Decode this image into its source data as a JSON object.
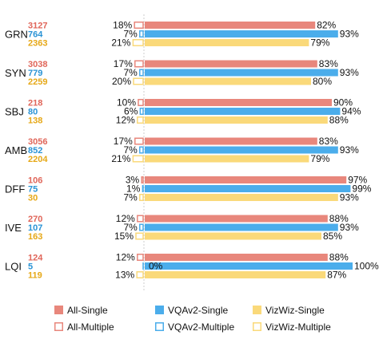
{
  "chart_data": {
    "type": "bar",
    "categories": [
      "GRN",
      "SYN",
      "SBJ",
      "AMB",
      "DFF",
      "IVE",
      "LQI"
    ],
    "counts": {
      "All": [
        3127,
        3038,
        218,
        3056,
        106,
        270,
        124
      ],
      "VQAv2": [
        764,
        779,
        80,
        852,
        75,
        107,
        5
      ],
      "VizWiz": [
        2363,
        2259,
        138,
        2204,
        30,
        163,
        119
      ]
    },
    "single": {
      "All": [
        82,
        83,
        90,
        83,
        97,
        88,
        88
      ],
      "VQAv2": [
        93,
        93,
        94,
        93,
        99,
        93,
        100
      ],
      "VizWiz": [
        79,
        80,
        88,
        79,
        93,
        85,
        87
      ]
    },
    "multiple": {
      "All": [
        18,
        17,
        10,
        17,
        3,
        12,
        12
      ],
      "VQAv2": [
        7,
        7,
        6,
        7,
        1,
        7,
        0
      ],
      "VizWiz": [
        21,
        20,
        12,
        21,
        7,
        15,
        13
      ]
    },
    "value_suffix": "%",
    "xlim": [
      0,
      100
    ],
    "legend": {
      "position": "bottom",
      "items": [
        {
          "key": "All",
          "style": "single",
          "label": "All-Single"
        },
        {
          "key": "VQAv2",
          "style": "single",
          "label": "VQAv2-Single"
        },
        {
          "key": "VizWiz",
          "style": "single",
          "label": "VizWiz-Single"
        },
        {
          "key": "All",
          "style": "multiple",
          "label": "All-Multiple"
        },
        {
          "key": "VQAv2",
          "style": "multiple",
          "label": "VQAv2-Multiple"
        },
        {
          "key": "VizWiz",
          "style": "multiple",
          "label": "VizWiz-Multiple"
        }
      ]
    },
    "colors": {
      "All": "#e8877c",
      "VQAv2": "#4badeb",
      "VizWiz": "#fad97a",
      "count_All": "#e0665a",
      "count_VQAv2": "#2a93d5",
      "count_VizWiz": "#e6a817",
      "divider": "#cccccc"
    }
  }
}
